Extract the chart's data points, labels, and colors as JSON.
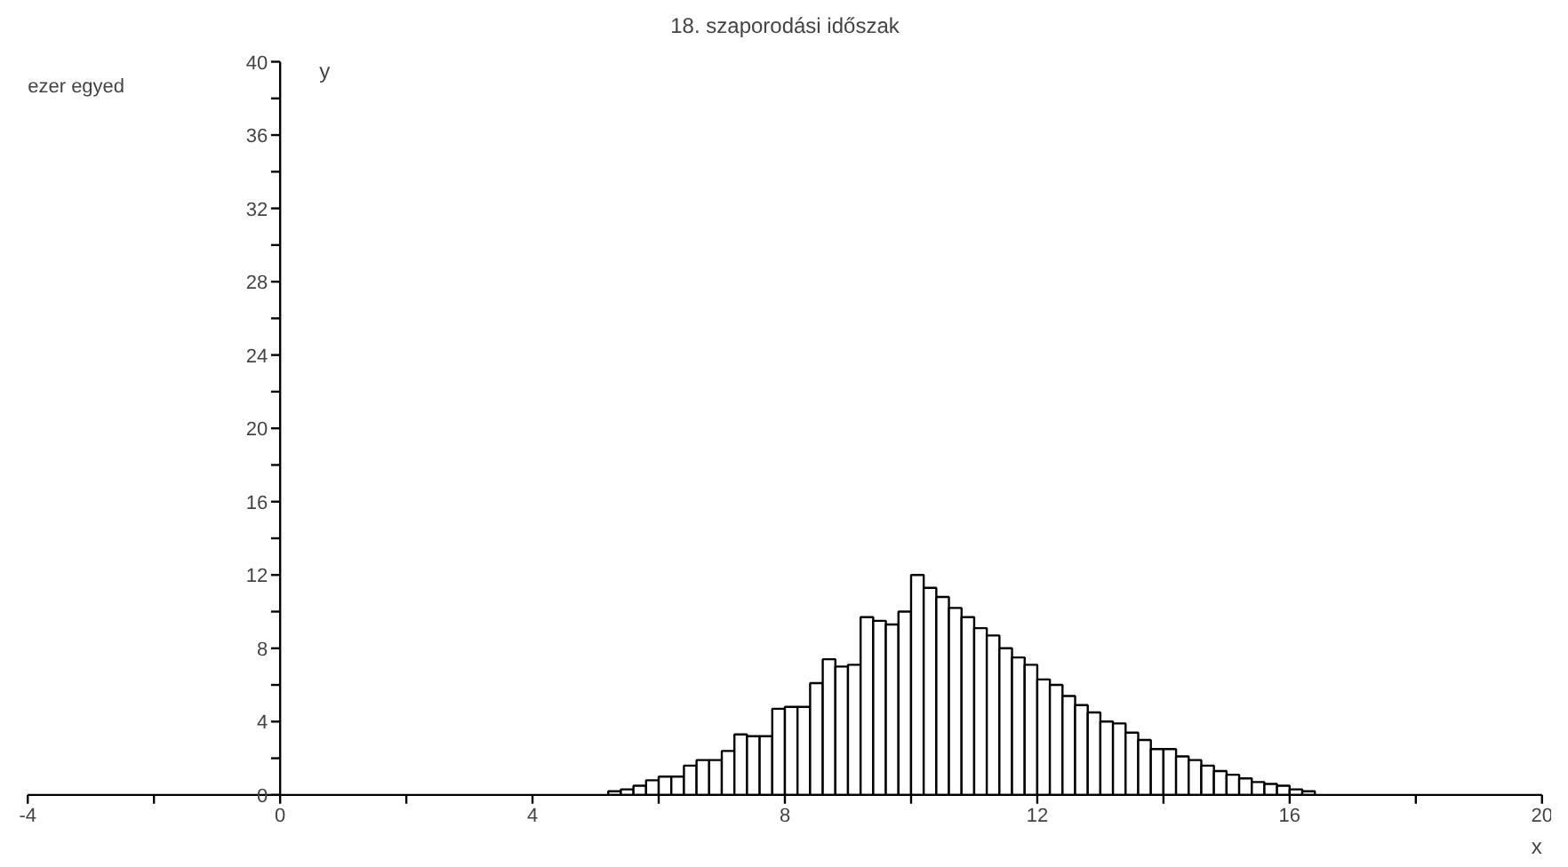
{
  "chart_data": {
    "type": "histogram",
    "title": "18. szaporodási időszak",
    "xlabel": "x",
    "ylabel": "y",
    "annotations": [
      "ezer egyed"
    ],
    "bins": [
      5.2,
      5.4,
      5.6,
      5.8,
      6.0,
      6.2,
      6.4,
      6.6,
      6.8,
      7.0,
      7.2,
      7.4,
      7.6,
      7.8,
      8.0,
      8.2,
      8.4,
      8.6,
      8.8,
      9.0,
      9.2,
      9.4,
      9.6,
      9.8,
      10.0,
      10.2,
      10.4,
      10.6,
      10.8,
      11.0,
      11.2,
      11.4,
      11.6,
      11.8,
      12.0,
      12.2,
      12.4,
      12.6,
      12.8,
      13.0,
      13.2,
      13.4,
      13.6,
      13.8,
      14.0,
      14.2,
      14.4,
      14.6,
      14.8,
      15.0,
      15.2,
      15.4,
      15.6,
      15.8,
      16.0,
      16.2,
      16.4,
      16.6,
      16.8,
      17.0,
      17.2,
      17.4
    ],
    "values": [
      0.2,
      0.3,
      0.5,
      0.8,
      1.0,
      1.0,
      1.6,
      1.9,
      1.9,
      2.4,
      3.3,
      3.2,
      3.2,
      4.7,
      4.8,
      4.8,
      6.1,
      7.4,
      7.0,
      7.1,
      9.7,
      9.5,
      9.3,
      10.0,
      12.0,
      11.3,
      10.8,
      10.2,
      9.7,
      9.1,
      8.7,
      8.0,
      7.5,
      7.1,
      6.3,
      6.0,
      5.4,
      4.9,
      4.5,
      4.0,
      3.9,
      3.4,
      3.0,
      2.5,
      2.5,
      2.1,
      1.9,
      1.6,
      1.3,
      1.1,
      0.9,
      0.7,
      0.6,
      0.5,
      0.3,
      0.2,
      null,
      null,
      null,
      null,
      null
    ],
    "color": "#ffffff",
    "grid": false,
    "xlim": [
      -4,
      20
    ],
    "xticks": [
      -4,
      {
        "value": -2,
        "label": null
      },
      0,
      {
        "value": 2,
        "label": null
      },
      4,
      {
        "value": 6,
        "label": null
      },
      8,
      {
        "value": 10,
        "label": null
      },
      12,
      {
        "value": 14,
        "label": null
      },
      16,
      {
        "value": 18,
        "label": null
      },
      20
    ],
    "ylim": [
      0,
      40
    ],
    "yticks": [
      0,
      {
        "value": 2,
        "label": null
      },
      4,
      {
        "value": 6,
        "label": null
      },
      8,
      {
        "value": 10,
        "label": null
      },
      12,
      {
        "value": 14,
        "label": null
      },
      16,
      {
        "value": 18,
        "label": null
      },
      20,
      {
        "value": 22,
        "label": null
      },
      24,
      {
        "value": 26,
        "label": null
      },
      28,
      {
        "value": 30,
        "label": null
      },
      32,
      {
        "value": 34,
        "label": null
      },
      36,
      {
        "value": 38,
        "label": null
      },
      40
    ]
  }
}
